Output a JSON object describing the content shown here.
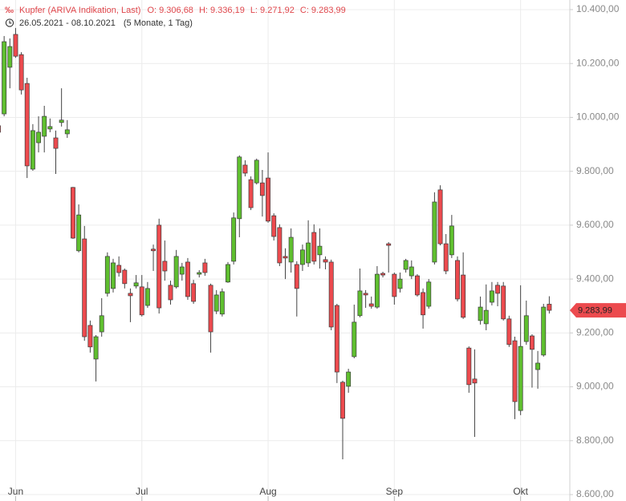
{
  "chart_data": {
    "type": "candlestick",
    "title": "Kupfer (ARIVA Indikation, Last)",
    "ohlc_labels": [
      "O: 9.306,68",
      "H: 9.336,19",
      "L: 9.271,92",
      "C: 9.283,99"
    ],
    "date_range": "26.05.2021 - 08.10.2021",
    "period": "(5 Monate, 1 Tag)",
    "last_label": "9.283,99",
    "up_color": "#5fbf2f",
    "down_color": "#ec4a4e",
    "header_color": "#e0474c",
    "grid": true,
    "ylim": [
      8600,
      10400
    ],
    "yticks": [
      {
        "value": 8600,
        "label": "8.600,00"
      },
      {
        "value": 8800,
        "label": "8.800,00"
      },
      {
        "value": 9000,
        "label": "9.000,00"
      },
      {
        "value": 9200,
        "label": "9.200,00"
      },
      {
        "value": 9400,
        "label": "9.400,00"
      },
      {
        "value": 9600,
        "label": "9.600,00"
      },
      {
        "value": 9800,
        "label": "9.800,00"
      },
      {
        "value": 10000,
        "label": "10.000,00"
      },
      {
        "value": 10200,
        "label": "10.200,00"
      },
      {
        "value": 10400,
        "label": "10.400,00"
      }
    ],
    "categories": [
      null,
      null,
      null,
      "Jun",
      null,
      null,
      null,
      null,
      null,
      null,
      null,
      null,
      null,
      null,
      null,
      null,
      null,
      null,
      null,
      null,
      null,
      null,
      null,
      null,
      null,
      "Jul",
      null,
      null,
      null,
      null,
      null,
      null,
      null,
      null,
      null,
      null,
      null,
      null,
      null,
      null,
      null,
      null,
      null,
      null,
      null,
      null,
      null,
      "Aug",
      null,
      null,
      null,
      null,
      null,
      null,
      null,
      null,
      null,
      null,
      null,
      null,
      null,
      null,
      null,
      null,
      null,
      null,
      null,
      null,
      null,
      "Sep",
      null,
      null,
      null,
      null,
      null,
      null,
      null,
      null,
      null,
      null,
      null,
      null,
      null,
      null,
      null,
      null,
      null,
      null,
      null,
      null,
      null,
      "Okt",
      null,
      null,
      null,
      null,
      null
    ],
    "open": [
      9969,
      10013,
      10186,
      10308,
      10233,
      10126,
      9808,
      9906,
      9930,
      9957,
      9924,
      9981,
      9939,
      9740,
      9505,
      9549,
      9228,
      9103,
      9204,
      9347,
      9365,
      9451,
      9433,
      9347,
      9374,
      9371,
      9302,
      9511,
      9600,
      9466,
      9377,
      9371,
      9418,
      9463,
      9383,
      9418,
      9460,
      9377,
      9281,
      9270,
      9389,
      9466,
      9624,
      9823,
      9769,
      9757,
      9757,
      9775,
      9635,
      9591,
      9484,
      9463,
      9454,
      9454,
      9460,
      9573,
      9490,
      9472,
      9463,
      9302,
      9017,
      9002,
      9112,
      9264,
      9347,
      9308,
      9296,
      9421,
      9531,
      9418,
      9365,
      9436,
      9412,
      9412,
      9350,
      9299,
      9463,
      9731,
      9531,
      9490,
      9469,
      9415,
      9144,
      9029,
      9246,
      9234,
      9314,
      9377,
      9374,
      9252,
      9171,
      8912,
      9168,
      9189,
      9064,
      9118,
      9306.68
    ],
    "high": [
      9990,
      10302,
      10293,
      10332,
      10242,
      10147,
      9975,
      10004,
      10043,
      9996,
      9951,
      10108,
      9990,
      9742,
      9677,
      9597,
      9246,
      9192,
      9329,
      9499,
      9475,
      9484,
      9439,
      9365,
      9415,
      9415,
      9389,
      9528,
      9624,
      9543,
      9394,
      9508,
      9460,
      9478,
      9397,
      9433,
      9475,
      9383,
      9359,
      9365,
      9463,
      9647,
      9859,
      9841,
      9781,
      9847,
      9805,
      9870,
      9644,
      9603,
      9514,
      9588,
      9466,
      9528,
      9618,
      9603,
      9588,
      9484,
      9472,
      9308,
      9023,
      9067,
      9305,
      9439,
      9359,
      9335,
      9448,
      9427,
      9537,
      9424,
      9424,
      9475,
      9469,
      9418,
      9365,
      9400,
      9722,
      9748,
      9567,
      9638,
      9484,
      9499,
      9150,
      9139,
      9335,
      9380,
      9389,
      9389,
      9389,
      9264,
      9186,
      9377,
      9320,
      9195,
      9133,
      9308,
      9336.19
    ],
    "low": [
      9936,
      10004,
      10108,
      10221,
      10085,
      9775,
      9802,
      9870,
      9870,
      9945,
      9790,
      9966,
      9924,
      9549,
      9499,
      9171,
      9127,
      9020,
      9186,
      9335,
      9350,
      9409,
      9365,
      9240,
      9365,
      9261,
      9293,
      9430,
      9272,
      9394,
      9305,
      9365,
      9394,
      9323,
      9308,
      9406,
      9412,
      9127,
      9270,
      9261,
      9386,
      9454,
      9555,
      9781,
      9656,
      9751,
      9632,
      9609,
      9543,
      9448,
      9400,
      9424,
      9261,
      9430,
      9445,
      9454,
      9439,
      9436,
      9210,
      9014,
      8731,
      8978,
      9106,
      9258,
      9293,
      9290,
      9290,
      9406,
      9424,
      9305,
      9350,
      9424,
      9400,
      9335,
      9216,
      9290,
      9454,
      9525,
      9418,
      9478,
      9317,
      9252,
      8978,
      8814,
      9231,
      9210,
      9302,
      9299,
      9246,
      9148,
      8880,
      8895,
      9156,
      8997,
      8993,
      9112,
      9271.92
    ],
    "close": [
      9945,
      10281,
      10263,
      10227,
      10102,
      9820,
      9951,
      9945,
      10004,
      9966,
      9885,
      9990,
      9954,
      9552,
      9638,
      9186,
      9148,
      9186,
      9264,
      9484,
      9460,
      9424,
      9383,
      9338,
      9386,
      9267,
      9365,
      9505,
      9293,
      9430,
      9323,
      9484,
      9445,
      9335,
      9317,
      9424,
      9424,
      9204,
      9341,
      9353,
      9454,
      9627,
      9853,
      9793,
      9665,
      9841,
      9710,
      9615,
      9558,
      9460,
      9478,
      9555,
      9365,
      9508,
      9534,
      9466,
      9522,
      9463,
      9222,
      9055,
      8883,
      9055,
      9240,
      9356,
      9341,
      9299,
      9418,
      9415,
      9525,
      9335,
      9400,
      9469,
      9445,
      9341,
      9267,
      9389,
      9686,
      9531,
      9430,
      9597,
      9326,
      9258,
      9008,
      9014,
      9296,
      9284,
      9356,
      9347,
      9252,
      9157,
      8945,
      9150,
      9264,
      9139,
      9088,
      9296,
      9283.99
    ]
  }
}
